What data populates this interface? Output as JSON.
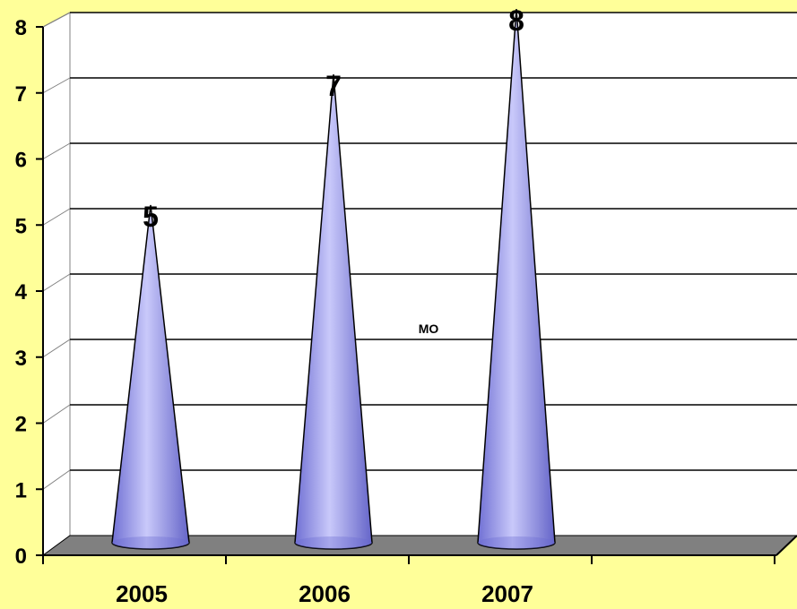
{
  "chart_data": {
    "type": "bar",
    "bar_shape": "cone",
    "categories": [
      "2005",
      "2006",
      "2007"
    ],
    "series": [
      {
        "name": "МО",
        "values": [
          5,
          7,
          8
        ]
      }
    ],
    "ylim": [
      0,
      8
    ],
    "yticks": [
      "0",
      "1",
      "2",
      "3",
      "4",
      "5",
      "6",
      "7",
      "8"
    ],
    "data_labels": [
      "5",
      "7",
      "8"
    ],
    "grid": true,
    "colors": {
      "background": "#ffff99",
      "plot_area": "#ffffff",
      "floor": "#808080",
      "cone_light": "#c8c8f8",
      "cone_dark": "#6a6ad0",
      "gridline": "#000000"
    }
  }
}
